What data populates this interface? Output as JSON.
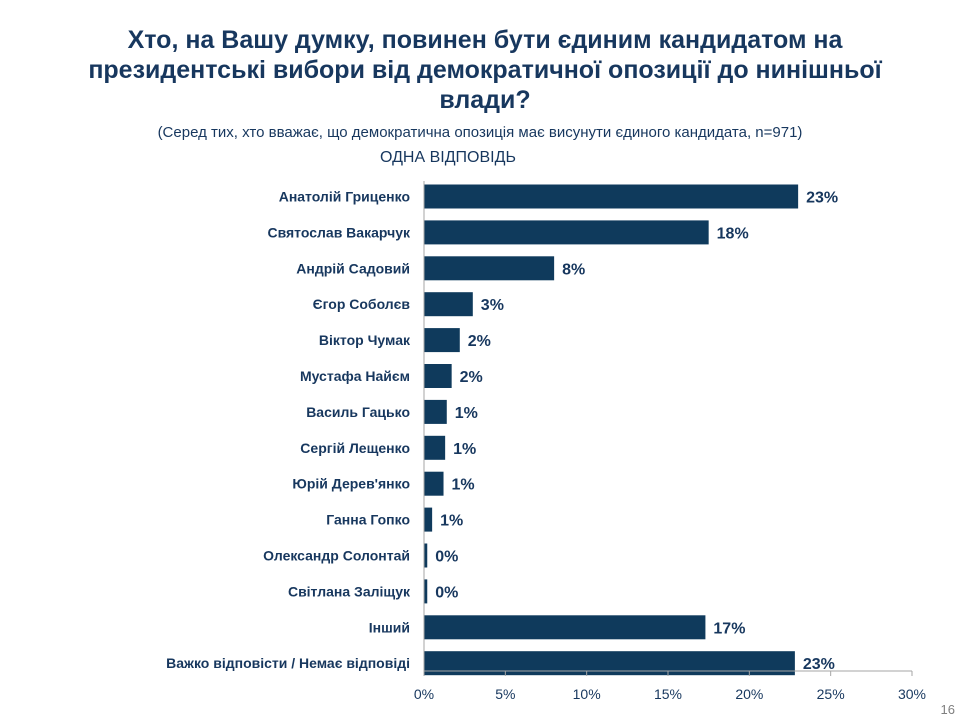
{
  "title": "Хто, на Вашу думку, повинен бути єдиним кандидатом на президентські вибори від демократичної опозиції до нинішньої влади?",
  "subtitle": "(Серед тих, хто вважає, що демократична опозиція має висунути єдиного кандидата, n=971)",
  "one_answer": "ОДНА ВІДПОВІДЬ",
  "page_number": "16",
  "colors": {
    "bar": "#0f3a5c",
    "text": "#17375e",
    "axis": "#a6a6a6"
  },
  "chart_data": {
    "type": "bar",
    "orientation": "horizontal",
    "categories": [
      "Анатолій Гриценко",
      "Святослав Вакарчук",
      "Андрій Садовий",
      "Єгор Соболєв",
      "Віктор Чумак",
      "Мустафа Найєм",
      "Василь Гацько",
      "Сергій Лещенко",
      "Юрій Дерев'янко",
      "Ганна Гопко",
      "Олександр Солонтай",
      "Світлана Заліщук",
      "Інший",
      "Важко відповісти / Немає відповіді"
    ],
    "values": [
      23,
      17.5,
      8,
      3,
      2.2,
      1.7,
      1.4,
      1.3,
      1.2,
      0.5,
      0.2,
      0.2,
      17.3,
      22.8
    ],
    "value_labels": [
      "23%",
      "18%",
      "8%",
      "3%",
      "2%",
      "2%",
      "1%",
      "1%",
      "1%",
      "1%",
      "0%",
      "0%",
      "17%",
      "23%"
    ],
    "xlim": [
      0,
      30
    ],
    "xticks": [
      "0%",
      "5%",
      "10%",
      "15%",
      "20%",
      "25%",
      "30%"
    ],
    "grid": false
  }
}
